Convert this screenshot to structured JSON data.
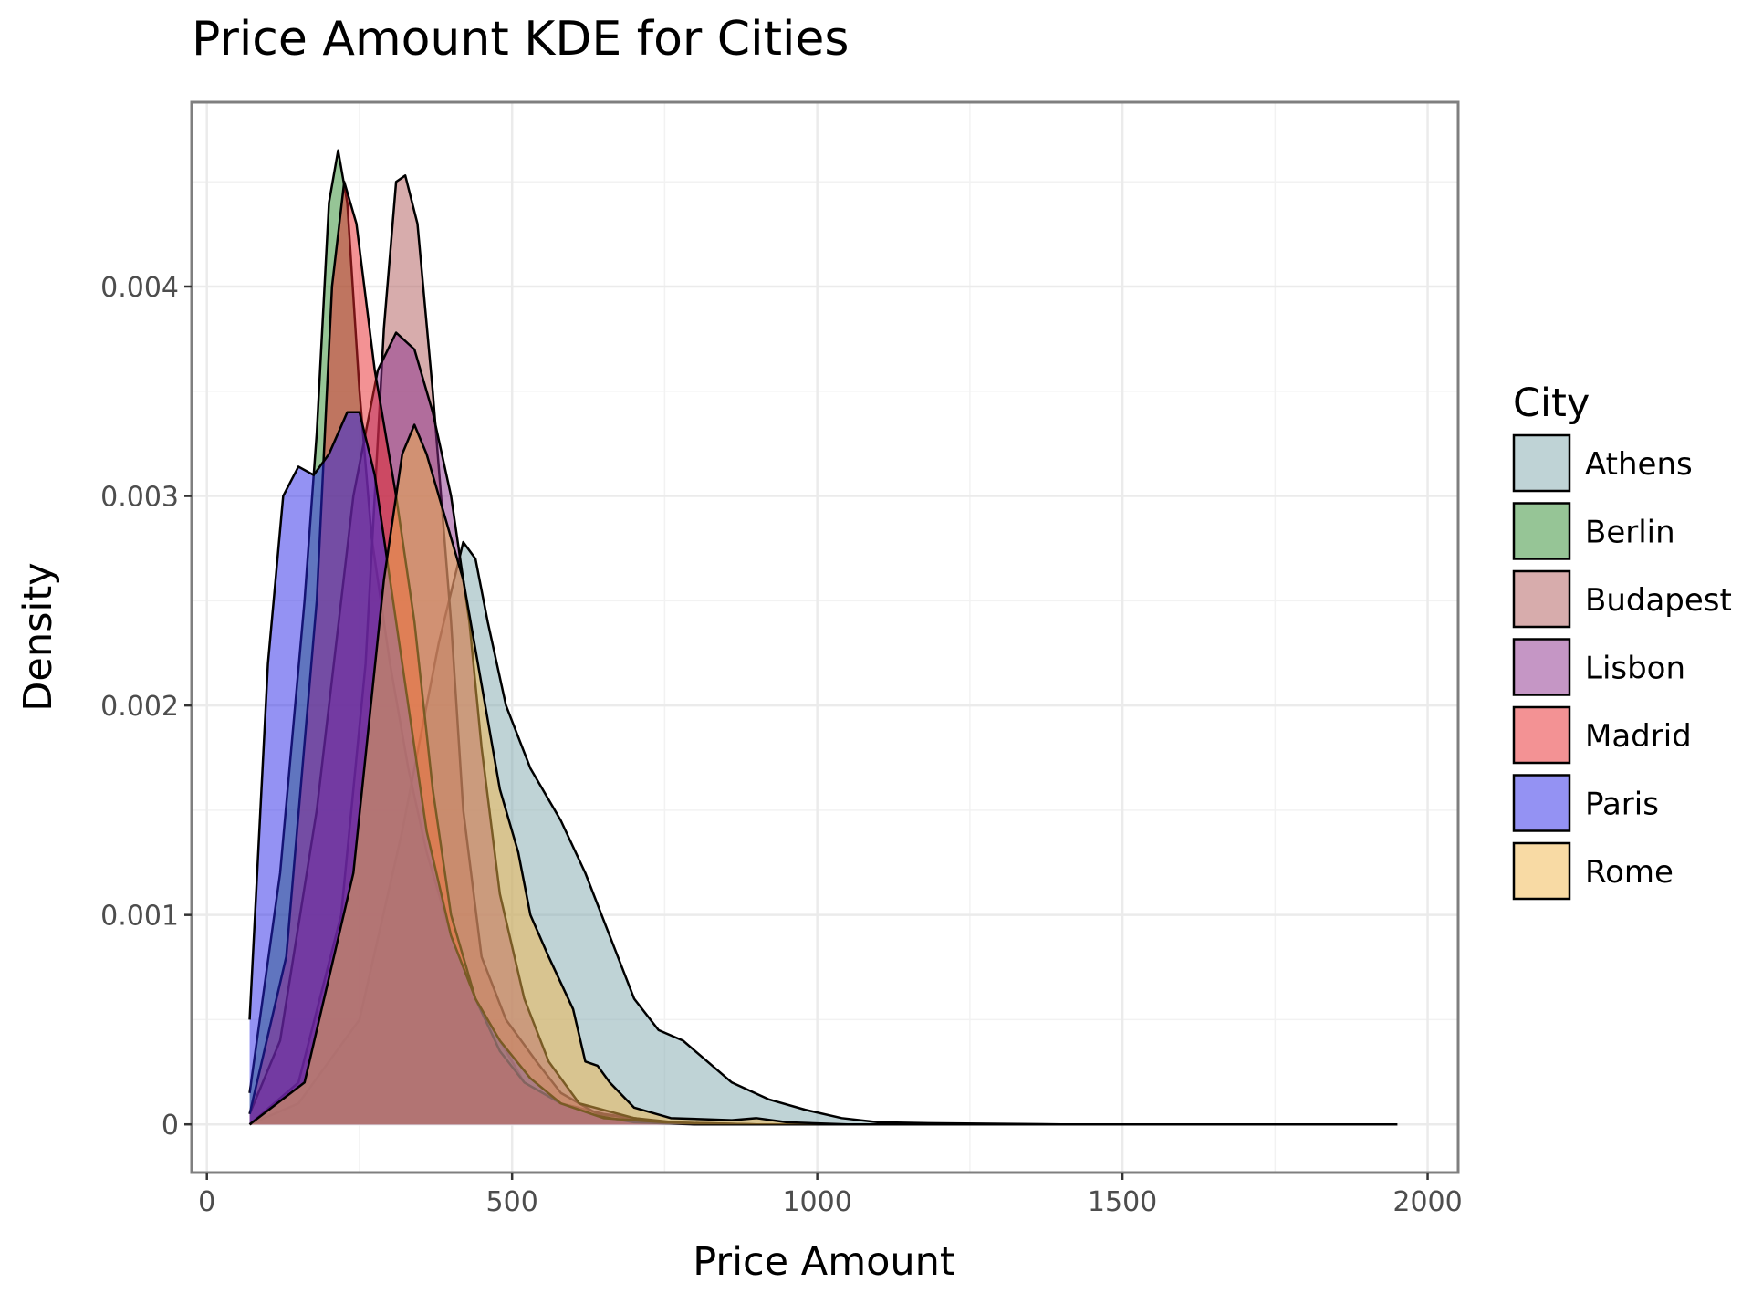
{
  "chart_data": {
    "type": "area",
    "title": "Price Amount KDE for Cities",
    "xlabel": "Price Amount",
    "ylabel": "Density",
    "xlim": [
      -25,
      2050
    ],
    "ylim": [
      -0.00023,
      0.00488
    ],
    "x_ticks": [
      0,
      500,
      1000,
      1500,
      2000
    ],
    "x_tick_labels": [
      "0",
      "500",
      "1000",
      "1500",
      "2000"
    ],
    "y_ticks": [
      0,
      0.001,
      0.002,
      0.003,
      0.004
    ],
    "y_tick_labels": [
      "0",
      "0.001",
      "0.002",
      "0.003",
      "0.004"
    ],
    "grid": true,
    "legend": {
      "title": "City",
      "position": "right"
    },
    "series": [
      {
        "name": "Athens",
        "color": "#7fa8ad",
        "points": [
          [
            70,
            0
          ],
          [
            150,
            0.0001
          ],
          [
            250,
            0.0005
          ],
          [
            320,
            0.0014
          ],
          [
            380,
            0.0023
          ],
          [
            420,
            0.00278
          ],
          [
            440,
            0.0027
          ],
          [
            460,
            0.0024
          ],
          [
            490,
            0.002
          ],
          [
            530,
            0.0017
          ],
          [
            580,
            0.00145
          ],
          [
            620,
            0.0012
          ],
          [
            660,
            0.0009
          ],
          [
            700,
            0.0006
          ],
          [
            740,
            0.00045
          ],
          [
            780,
            0.0004
          ],
          [
            820,
            0.0003
          ],
          [
            860,
            0.0002
          ],
          [
            920,
            0.00012
          ],
          [
            980,
            7e-05
          ],
          [
            1040,
            3e-05
          ],
          [
            1100,
            1e-05
          ],
          [
            1200,
            5e-06
          ],
          [
            1400,
            0
          ],
          [
            1950,
            0
          ]
        ]
      },
      {
        "name": "Berlin",
        "color": "#2e8b2e",
        "points": [
          [
            70,
            0.00015
          ],
          [
            120,
            0.0012
          ],
          [
            160,
            0.0025
          ],
          [
            180,
            0.0033
          ],
          [
            200,
            0.0044
          ],
          [
            215,
            0.00465
          ],
          [
            230,
            0.0044
          ],
          [
            250,
            0.0035
          ],
          [
            270,
            0.0028
          ],
          [
            300,
            0.0022
          ],
          [
            330,
            0.0017
          ],
          [
            360,
            0.0013
          ],
          [
            400,
            0.0009
          ],
          [
            440,
            0.0006
          ],
          [
            480,
            0.0004
          ],
          [
            520,
            0.0002
          ],
          [
            580,
            0.0001
          ],
          [
            650,
            5e-05
          ],
          [
            750,
            1e-05
          ],
          [
            900,
            0
          ],
          [
            1950,
            0
          ]
        ]
      },
      {
        "name": "Budapest",
        "color": "#b05a5a",
        "points": [
          [
            70,
            0
          ],
          [
            150,
            0.0002
          ],
          [
            220,
            0.001
          ],
          [
            260,
            0.0022
          ],
          [
            290,
            0.0038
          ],
          [
            310,
            0.0045
          ],
          [
            325,
            0.00453
          ],
          [
            345,
            0.0043
          ],
          [
            370,
            0.0035
          ],
          [
            400,
            0.0024
          ],
          [
            420,
            0.0015
          ],
          [
            450,
            0.0008
          ],
          [
            490,
            0.0005
          ],
          [
            540,
            0.0003
          ],
          [
            580,
            0.00015
          ],
          [
            640,
            5e-05
          ],
          [
            750,
            1e-05
          ],
          [
            900,
            0
          ],
          [
            1950,
            0
          ]
        ]
      },
      {
        "name": "Lisbon",
        "color": "#8b2e8b",
        "points": [
          [
            70,
            5e-05
          ],
          [
            120,
            0.0004
          ],
          [
            180,
            0.0015
          ],
          [
            240,
            0.003
          ],
          [
            280,
            0.0036
          ],
          [
            310,
            0.00378
          ],
          [
            340,
            0.0037
          ],
          [
            370,
            0.0034
          ],
          [
            400,
            0.003
          ],
          [
            430,
            0.0024
          ],
          [
            450,
            0.0018
          ],
          [
            480,
            0.0011
          ],
          [
            520,
            0.0006
          ],
          [
            560,
            0.0003
          ],
          [
            610,
            0.0001
          ],
          [
            700,
            3e-05
          ],
          [
            800,
            0
          ],
          [
            1950,
            0
          ]
        ]
      },
      {
        "name": "Madrid",
        "color": "#e8262a",
        "points": [
          [
            70,
            5e-05
          ],
          [
            130,
            0.0008
          ],
          [
            180,
            0.0025
          ],
          [
            205,
            0.004
          ],
          [
            225,
            0.0045
          ],
          [
            245,
            0.0043
          ],
          [
            275,
            0.0036
          ],
          [
            310,
            0.003
          ],
          [
            340,
            0.0024
          ],
          [
            370,
            0.0016
          ],
          [
            400,
            0.001
          ],
          [
            440,
            0.0006
          ],
          [
            480,
            0.00035
          ],
          [
            520,
            0.0002
          ],
          [
            580,
            0.0001
          ],
          [
            640,
            4e-05
          ],
          [
            700,
            1e-05
          ],
          [
            800,
            0
          ],
          [
            1950,
            0
          ]
        ]
      },
      {
        "name": "Paris",
        "color": "#2a26e8",
        "points": [
          [
            70,
            0.0005
          ],
          [
            100,
            0.0022
          ],
          [
            125,
            0.003
          ],
          [
            150,
            0.00314
          ],
          [
            175,
            0.0031
          ],
          [
            200,
            0.0032
          ],
          [
            230,
            0.0034
          ],
          [
            250,
            0.0034
          ],
          [
            275,
            0.0031
          ],
          [
            300,
            0.0026
          ],
          [
            330,
            0.002
          ],
          [
            360,
            0.0014
          ],
          [
            400,
            0.0009
          ],
          [
            440,
            0.0006
          ],
          [
            480,
            0.0004
          ],
          [
            530,
            0.00022
          ],
          [
            580,
            0.0001
          ],
          [
            650,
            3e-05
          ],
          [
            750,
            1e-05
          ],
          [
            850,
            0
          ],
          [
            1950,
            0
          ]
        ]
      },
      {
        "name": "Rome",
        "color": "#f2b64a",
        "points": [
          [
            70,
            0
          ],
          [
            160,
            0.0002
          ],
          [
            240,
            0.0012
          ],
          [
            290,
            0.0026
          ],
          [
            320,
            0.0032
          ],
          [
            340,
            0.00334
          ],
          [
            360,
            0.0032
          ],
          [
            390,
            0.0029
          ],
          [
            420,
            0.0026
          ],
          [
            450,
            0.0021
          ],
          [
            480,
            0.0016
          ],
          [
            510,
            0.0013
          ],
          [
            530,
            0.001
          ],
          [
            560,
            0.0008
          ],
          [
            600,
            0.00055
          ],
          [
            620,
            0.0003
          ],
          [
            640,
            0.00028
          ],
          [
            660,
            0.0002
          ],
          [
            700,
            8e-05
          ],
          [
            760,
            3e-05
          ],
          [
            860,
            2e-05
          ],
          [
            900,
            3e-05
          ],
          [
            950,
            1e-05
          ],
          [
            1050,
            0
          ],
          [
            1950,
            0
          ]
        ]
      }
    ]
  }
}
